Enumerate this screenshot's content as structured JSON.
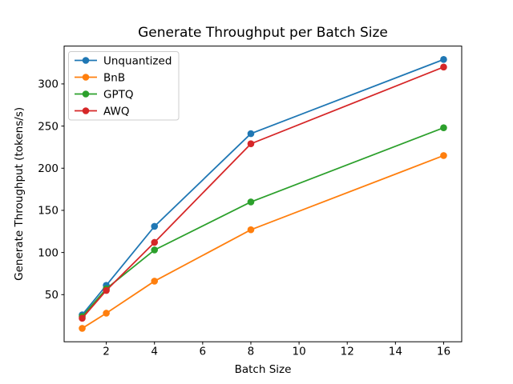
{
  "chart_data": {
    "type": "line",
    "title": "Generate Throughput per Batch Size",
    "xlabel": "Batch Size",
    "ylabel": "Generate Throughput (tokens/s)",
    "x": [
      1,
      2,
      4,
      8,
      16
    ],
    "series": [
      {
        "name": "Unquantized",
        "color": "#1f77b4",
        "values": [
          26,
          61,
          131,
          241,
          329
        ]
      },
      {
        "name": "BnB",
        "color": "#ff7f0e",
        "values": [
          10,
          28,
          66,
          127,
          215
        ]
      },
      {
        "name": "GPTQ",
        "color": "#2ca02c",
        "values": [
          24,
          57,
          103,
          160,
          248
        ]
      },
      {
        "name": "AWQ",
        "color": "#d62728",
        "values": [
          22,
          55,
          112,
          229,
          320
        ]
      }
    ],
    "xticks": [
      2,
      4,
      6,
      8,
      10,
      12,
      14,
      16
    ],
    "yticks": [
      50,
      100,
      150,
      200,
      250,
      300
    ],
    "xlim": [
      0.25,
      16.75
    ],
    "ylim": [
      -5.9,
      344.9
    ],
    "legend_position": "upper left",
    "grid": false,
    "marker": "o",
    "spine_color": "#000000",
    "legend_edge_color": "#cccccc"
  }
}
